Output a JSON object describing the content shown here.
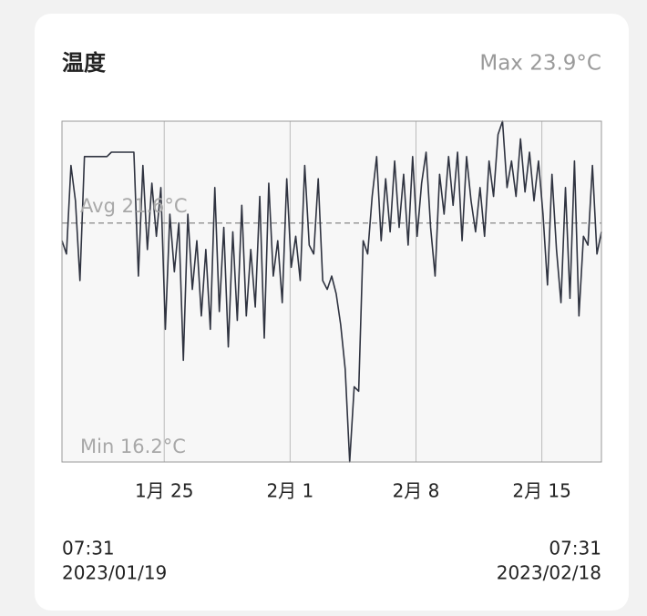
{
  "chart_data": {
    "type": "line",
    "title": "温度",
    "max": {
      "value": 23.9,
      "label": "Max 23.9°C"
    },
    "avg": {
      "value": 21.6,
      "label": "Avg 21.6°C"
    },
    "min": {
      "value": 16.2,
      "label": "Min 16.2°C"
    },
    "ylim": [
      16.2,
      23.9
    ],
    "xlim": [
      "2023-01-19T07:31",
      "2023-02-18T07:31"
    ],
    "xticks": [
      {
        "value": "2023-01-25T00:00",
        "label": "1月 25"
      },
      {
        "value": "2023-02-01T00:00",
        "label": "2月 1"
      },
      {
        "value": "2023-02-08T00:00",
        "label": "2月 8"
      },
      {
        "value": "2023-02-15T00:00",
        "label": "2月 15"
      }
    ],
    "grid": true,
    "start_time": "07:31",
    "start_date": "2023/01/19",
    "end_time": "07:31",
    "end_date": "2023/02/18",
    "series": [
      {
        "name": "温度",
        "color": "#2f3340",
        "x": [
          "2023-01-19T07:31",
          "2023-01-19T13:31",
          "2023-01-19T19:31",
          "2023-01-20T01:31",
          "2023-01-20T07:31",
          "2023-01-20T13:31",
          "2023-01-20T19:31",
          "2023-01-21T01:31",
          "2023-01-21T07:31",
          "2023-01-21T13:31",
          "2023-01-21T19:31",
          "2023-01-22T01:31",
          "2023-01-22T07:31",
          "2023-01-22T13:31",
          "2023-01-22T19:31",
          "2023-01-23T01:31",
          "2023-01-23T07:31",
          "2023-01-23T13:31",
          "2023-01-23T19:31",
          "2023-01-24T01:31",
          "2023-01-24T07:31",
          "2023-01-24T13:31",
          "2023-01-24T19:31",
          "2023-01-25T01:31",
          "2023-01-25T07:31",
          "2023-01-25T13:31",
          "2023-01-25T19:31",
          "2023-01-26T01:31",
          "2023-01-26T07:31",
          "2023-01-26T13:31",
          "2023-01-26T19:31",
          "2023-01-27T01:31",
          "2023-01-27T07:31",
          "2023-01-27T13:31",
          "2023-01-27T19:31",
          "2023-01-28T01:31",
          "2023-01-28T07:31",
          "2023-01-28T13:31",
          "2023-01-28T19:31",
          "2023-01-29T01:31",
          "2023-01-29T07:31",
          "2023-01-29T13:31",
          "2023-01-29T19:31",
          "2023-01-30T01:31",
          "2023-01-30T07:31",
          "2023-01-30T13:31",
          "2023-01-30T19:31",
          "2023-01-31T01:31",
          "2023-01-31T07:31",
          "2023-01-31T13:31",
          "2023-01-31T19:31",
          "2023-02-01T01:31",
          "2023-02-01T07:31",
          "2023-02-01T13:31",
          "2023-02-01T19:31",
          "2023-02-02T01:31",
          "2023-02-02T07:31",
          "2023-02-02T13:31",
          "2023-02-02T19:31",
          "2023-02-03T01:31",
          "2023-02-03T07:31",
          "2023-02-03T13:31",
          "2023-02-03T19:31",
          "2023-02-04T01:31",
          "2023-02-04T07:31",
          "2023-02-04T13:31",
          "2023-02-04T19:31",
          "2023-02-05T01:31",
          "2023-02-05T07:31",
          "2023-02-05T13:31",
          "2023-02-05T19:31",
          "2023-02-06T01:31",
          "2023-02-06T07:31",
          "2023-02-06T13:31",
          "2023-02-06T19:31",
          "2023-02-07T01:31",
          "2023-02-07T07:31",
          "2023-02-07T13:31",
          "2023-02-07T19:31",
          "2023-02-08T01:31",
          "2023-02-08T07:31",
          "2023-02-08T13:31",
          "2023-02-08T19:31",
          "2023-02-09T01:31",
          "2023-02-09T07:31",
          "2023-02-09T13:31",
          "2023-02-09T19:31",
          "2023-02-10T01:31",
          "2023-02-10T07:31",
          "2023-02-10T13:31",
          "2023-02-10T19:31",
          "2023-02-11T01:31",
          "2023-02-11T07:31",
          "2023-02-11T13:31",
          "2023-02-11T19:31",
          "2023-02-12T01:31",
          "2023-02-12T07:31",
          "2023-02-12T13:31",
          "2023-02-12T19:31",
          "2023-02-13T01:31",
          "2023-02-13T07:31",
          "2023-02-13T13:31",
          "2023-02-13T19:31",
          "2023-02-14T01:31",
          "2023-02-14T07:31",
          "2023-02-14T13:31",
          "2023-02-14T19:31",
          "2023-02-15T01:31",
          "2023-02-15T07:31",
          "2023-02-15T13:31",
          "2023-02-15T19:31",
          "2023-02-16T01:31",
          "2023-02-16T07:31",
          "2023-02-16T13:31",
          "2023-02-16T19:31",
          "2023-02-17T01:31",
          "2023-02-17T07:31",
          "2023-02-17T13:31",
          "2023-02-17T19:31",
          "2023-02-18T01:31",
          "2023-02-18T07:31"
        ],
        "values": [
          21.2,
          20.9,
          22.9,
          22.1,
          20.3,
          23.1,
          23.1,
          23.1,
          23.1,
          23.1,
          23.1,
          23.2,
          23.2,
          23.2,
          23.2,
          23.2,
          23.2,
          20.4,
          22.9,
          21.0,
          22.5,
          21.3,
          22.4,
          19.2,
          21.8,
          20.5,
          21.6,
          18.5,
          21.8,
          20.1,
          21.2,
          19.5,
          21.0,
          19.2,
          22.4,
          19.6,
          21.5,
          18.8,
          21.4,
          19.4,
          22.0,
          19.5,
          21.0,
          19.7,
          22.2,
          19.0,
          22.5,
          20.4,
          21.2,
          19.8,
          22.6,
          20.6,
          21.3,
          20.3,
          22.9,
          21.1,
          20.9,
          22.6,
          20.3,
          20.1,
          20.4,
          20.0,
          19.3,
          18.3,
          16.2,
          17.9,
          17.8,
          21.2,
          20.9,
          22.2,
          23.1,
          21.2,
          22.6,
          21.4,
          23.0,
          21.5,
          22.7,
          21.1,
          23.1,
          21.3,
          22.5,
          23.2,
          21.5,
          20.4,
          22.7,
          21.8,
          23.1,
          22.0,
          23.2,
          21.2,
          23.1,
          22.1,
          21.4,
          22.4,
          21.3,
          23.0,
          22.2,
          23.6,
          23.9,
          22.4,
          23.0,
          22.2,
          23.5,
          22.3,
          23.2,
          22.1,
          23.0,
          21.8,
          20.2,
          22.7,
          21.0,
          19.8,
          22.4,
          19.9,
          23.0,
          19.5,
          21.3,
          21.1,
          22.9,
          20.9,
          21.4
        ]
      }
    ]
  }
}
